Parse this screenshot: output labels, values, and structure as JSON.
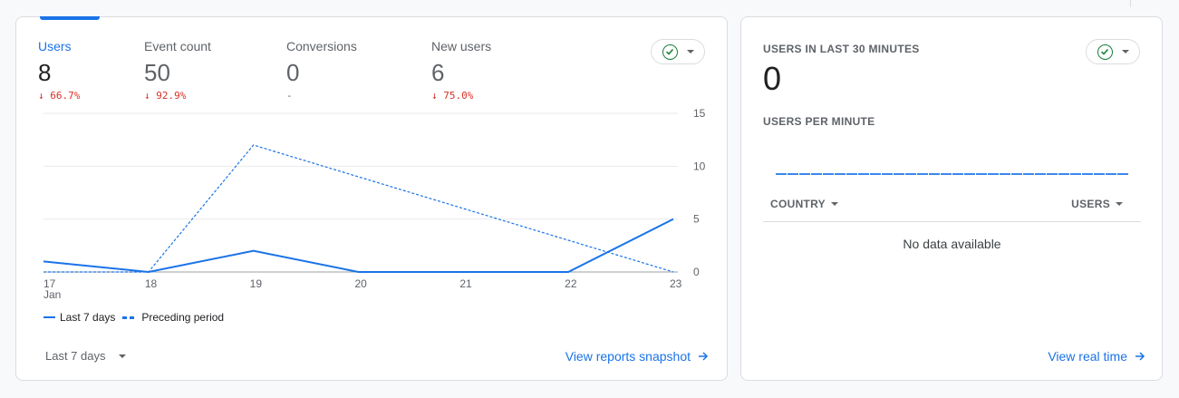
{
  "metrics": [
    {
      "label": "Users",
      "value": "8",
      "change": "↓ 66.7%"
    },
    {
      "label": "Event count",
      "value": "50",
      "change": "↓ 92.9%"
    },
    {
      "label": "Conversions",
      "value": "0",
      "change": "-"
    },
    {
      "label": "New users",
      "value": "6",
      "change": "↓ 75.0%"
    }
  ],
  "colors": {
    "accent": "#1a73e8",
    "negative": "#d93025",
    "check": "#188038"
  },
  "chart_data": {
    "type": "line",
    "categories": [
      "17",
      "18",
      "19",
      "20",
      "21",
      "22",
      "23"
    ],
    "first_tick_sublabel": "Jan",
    "yticks": [
      "0",
      "5",
      "10",
      "15"
    ],
    "ylim": [
      0,
      15
    ],
    "grid": true,
    "legend_position": "bottom-left",
    "series": [
      {
        "name": "Last 7 days",
        "style": "solid",
        "values": [
          1,
          0,
          2,
          0,
          0,
          0,
          5
        ]
      },
      {
        "name": "Preceding period",
        "style": "dashed",
        "values": [
          0,
          0,
          12,
          9,
          6,
          3,
          0
        ]
      }
    ]
  },
  "legend": {
    "current": "Last 7 days",
    "previous": "Preceding period"
  },
  "footer": {
    "range": "Last 7 days",
    "link": "View reports snapshot"
  },
  "realtime": {
    "title": "USERS IN LAST 30 MINUTES",
    "value": "0",
    "subtitle": "USERS PER MINUTE",
    "col_country": "COUNTRY",
    "col_users": "USERS",
    "empty": "No data available",
    "link": "View real time"
  },
  "icons": {
    "check": "check-circle-icon",
    "dropdown": "chevron-down-icon",
    "arrow": "arrow-right-icon"
  }
}
